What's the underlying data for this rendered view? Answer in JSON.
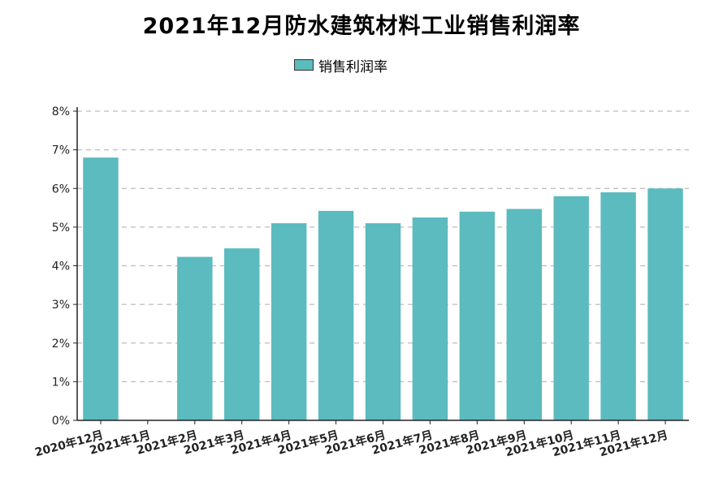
{
  "chart_data": {
    "type": "bar",
    "title": "2021年12月防水建筑材料工业销售利润率",
    "legend": [
      "销售利润率"
    ],
    "legend_position": "top-center",
    "series": [
      {
        "name": "销售利润率",
        "color": "#5bbbbe",
        "values": [
          6.8,
          null,
          4.23,
          4.45,
          5.1,
          5.42,
          5.1,
          5.25,
          5.4,
          5.47,
          5.8,
          5.9,
          6.0
        ]
      }
    ],
    "categories": [
      "2020年12月",
      "2021年1月",
      "2021年2月",
      "2021年3月",
      "2021年4月",
      "2021年5月",
      "2021年6月",
      "2021年7月",
      "2021年8月",
      "2021年9月",
      "2021年10月",
      "2021年11月",
      "2021年12月"
    ],
    "y_ticks": [
      "0%",
      "1%",
      "2%",
      "3%",
      "4%",
      "5%",
      "6%",
      "7%",
      "8%"
    ],
    "ylim": [
      0,
      8
    ],
    "y_unit": "%",
    "grid": true
  }
}
